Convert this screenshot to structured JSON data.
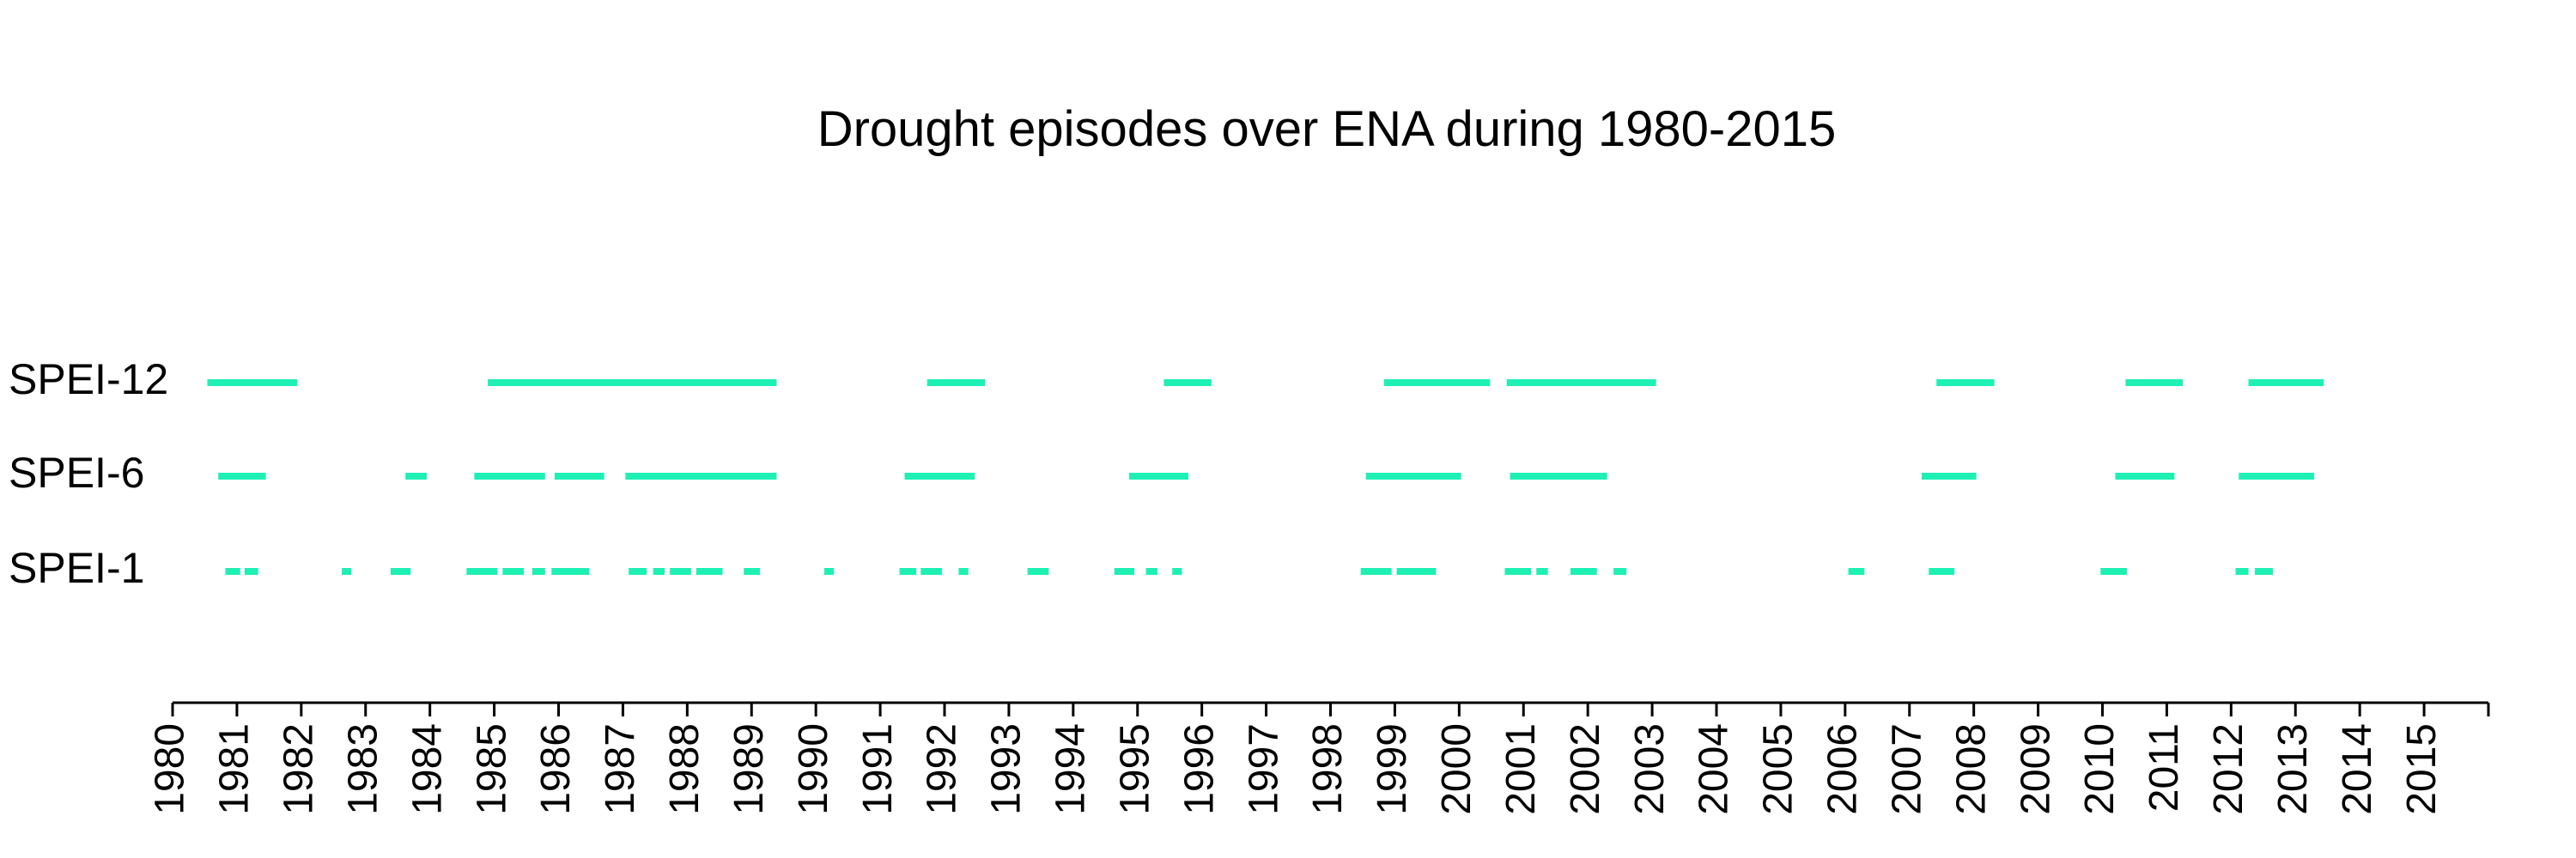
{
  "chart_data": {
    "type": "timeline",
    "title": "Drought episodes over ENA during 1980-2015",
    "xlim": [
      1980,
      2016
    ],
    "xticks": [
      1980,
      1981,
      1982,
      1983,
      1984,
      1985,
      1986,
      1987,
      1988,
      1989,
      1990,
      1991,
      1992,
      1993,
      1994,
      1995,
      1996,
      1997,
      1998,
      1999,
      2000,
      2001,
      2002,
      2003,
      2004,
      2005,
      2006,
      2007,
      2008,
      2009,
      2010,
      2011,
      2012,
      2013,
      2014,
      2015
    ],
    "series": [
      {
        "name": "SPEI-12",
        "color": "#1ef0b4",
        "episodes": [
          [
            1980.54,
            1981.94
          ],
          [
            1984.9,
            1989.39
          ],
          [
            1991.73,
            1992.63
          ],
          [
            1995.41,
            1996.15
          ],
          [
            1998.83,
            2000.48
          ],
          [
            2000.74,
            2003.06
          ],
          [
            2007.42,
            2008.32
          ],
          [
            2010.36,
            2011.25
          ],
          [
            2012.27,
            2013.44
          ]
        ]
      },
      {
        "name": "SPEI-6",
        "color": "#1ef0b4",
        "episodes": [
          [
            1980.71,
            1981.45
          ],
          [
            1983.62,
            1983.95
          ],
          [
            1984.69,
            1985.79
          ],
          [
            1985.94,
            1986.71
          ],
          [
            1987.04,
            1989.39
          ],
          [
            1991.38,
            1992.47
          ],
          [
            1994.87,
            1995.79
          ],
          [
            1998.55,
            2000.03
          ],
          [
            2000.79,
            2002.3
          ],
          [
            2007.19,
            2008.04
          ],
          [
            2010.2,
            2011.12
          ],
          [
            2012.12,
            2013.29
          ]
        ]
      },
      {
        "name": "SPEI-1",
        "color": "#1ef0b4",
        "episodes": [
          [
            1980.82,
            1981.05
          ],
          [
            1981.12,
            1981.33
          ],
          [
            1982.63,
            1982.78
          ],
          [
            1983.39,
            1983.7
          ],
          [
            1984.57,
            1985.05
          ],
          [
            1985.13,
            1985.46
          ],
          [
            1985.59,
            1985.79
          ],
          [
            1985.89,
            1986.48
          ],
          [
            1987.09,
            1987.37
          ],
          [
            1987.47,
            1987.65
          ],
          [
            1987.73,
            1988.06
          ],
          [
            1988.14,
            1988.55
          ],
          [
            1988.88,
            1989.13
          ],
          [
            1990.13,
            1990.28
          ],
          [
            1991.3,
            1991.56
          ],
          [
            1991.63,
            1991.96
          ],
          [
            1992.22,
            1992.37
          ],
          [
            1993.29,
            1993.62
          ],
          [
            1994.64,
            1994.95
          ],
          [
            1995.13,
            1995.31
          ],
          [
            1995.54,
            1995.69
          ],
          [
            1998.47,
            1998.95
          ],
          [
            1999.03,
            1999.64
          ],
          [
            2000.71,
            2001.12
          ],
          [
            2001.2,
            2001.38
          ],
          [
            2001.73,
            2002.14
          ],
          [
            2002.4,
            2002.6
          ],
          [
            2006.05,
            2006.3
          ],
          [
            2007.3,
            2007.7
          ],
          [
            2009.97,
            2010.38
          ],
          [
            2012.07,
            2012.27
          ],
          [
            2012.37,
            2012.65
          ]
        ]
      }
    ]
  }
}
